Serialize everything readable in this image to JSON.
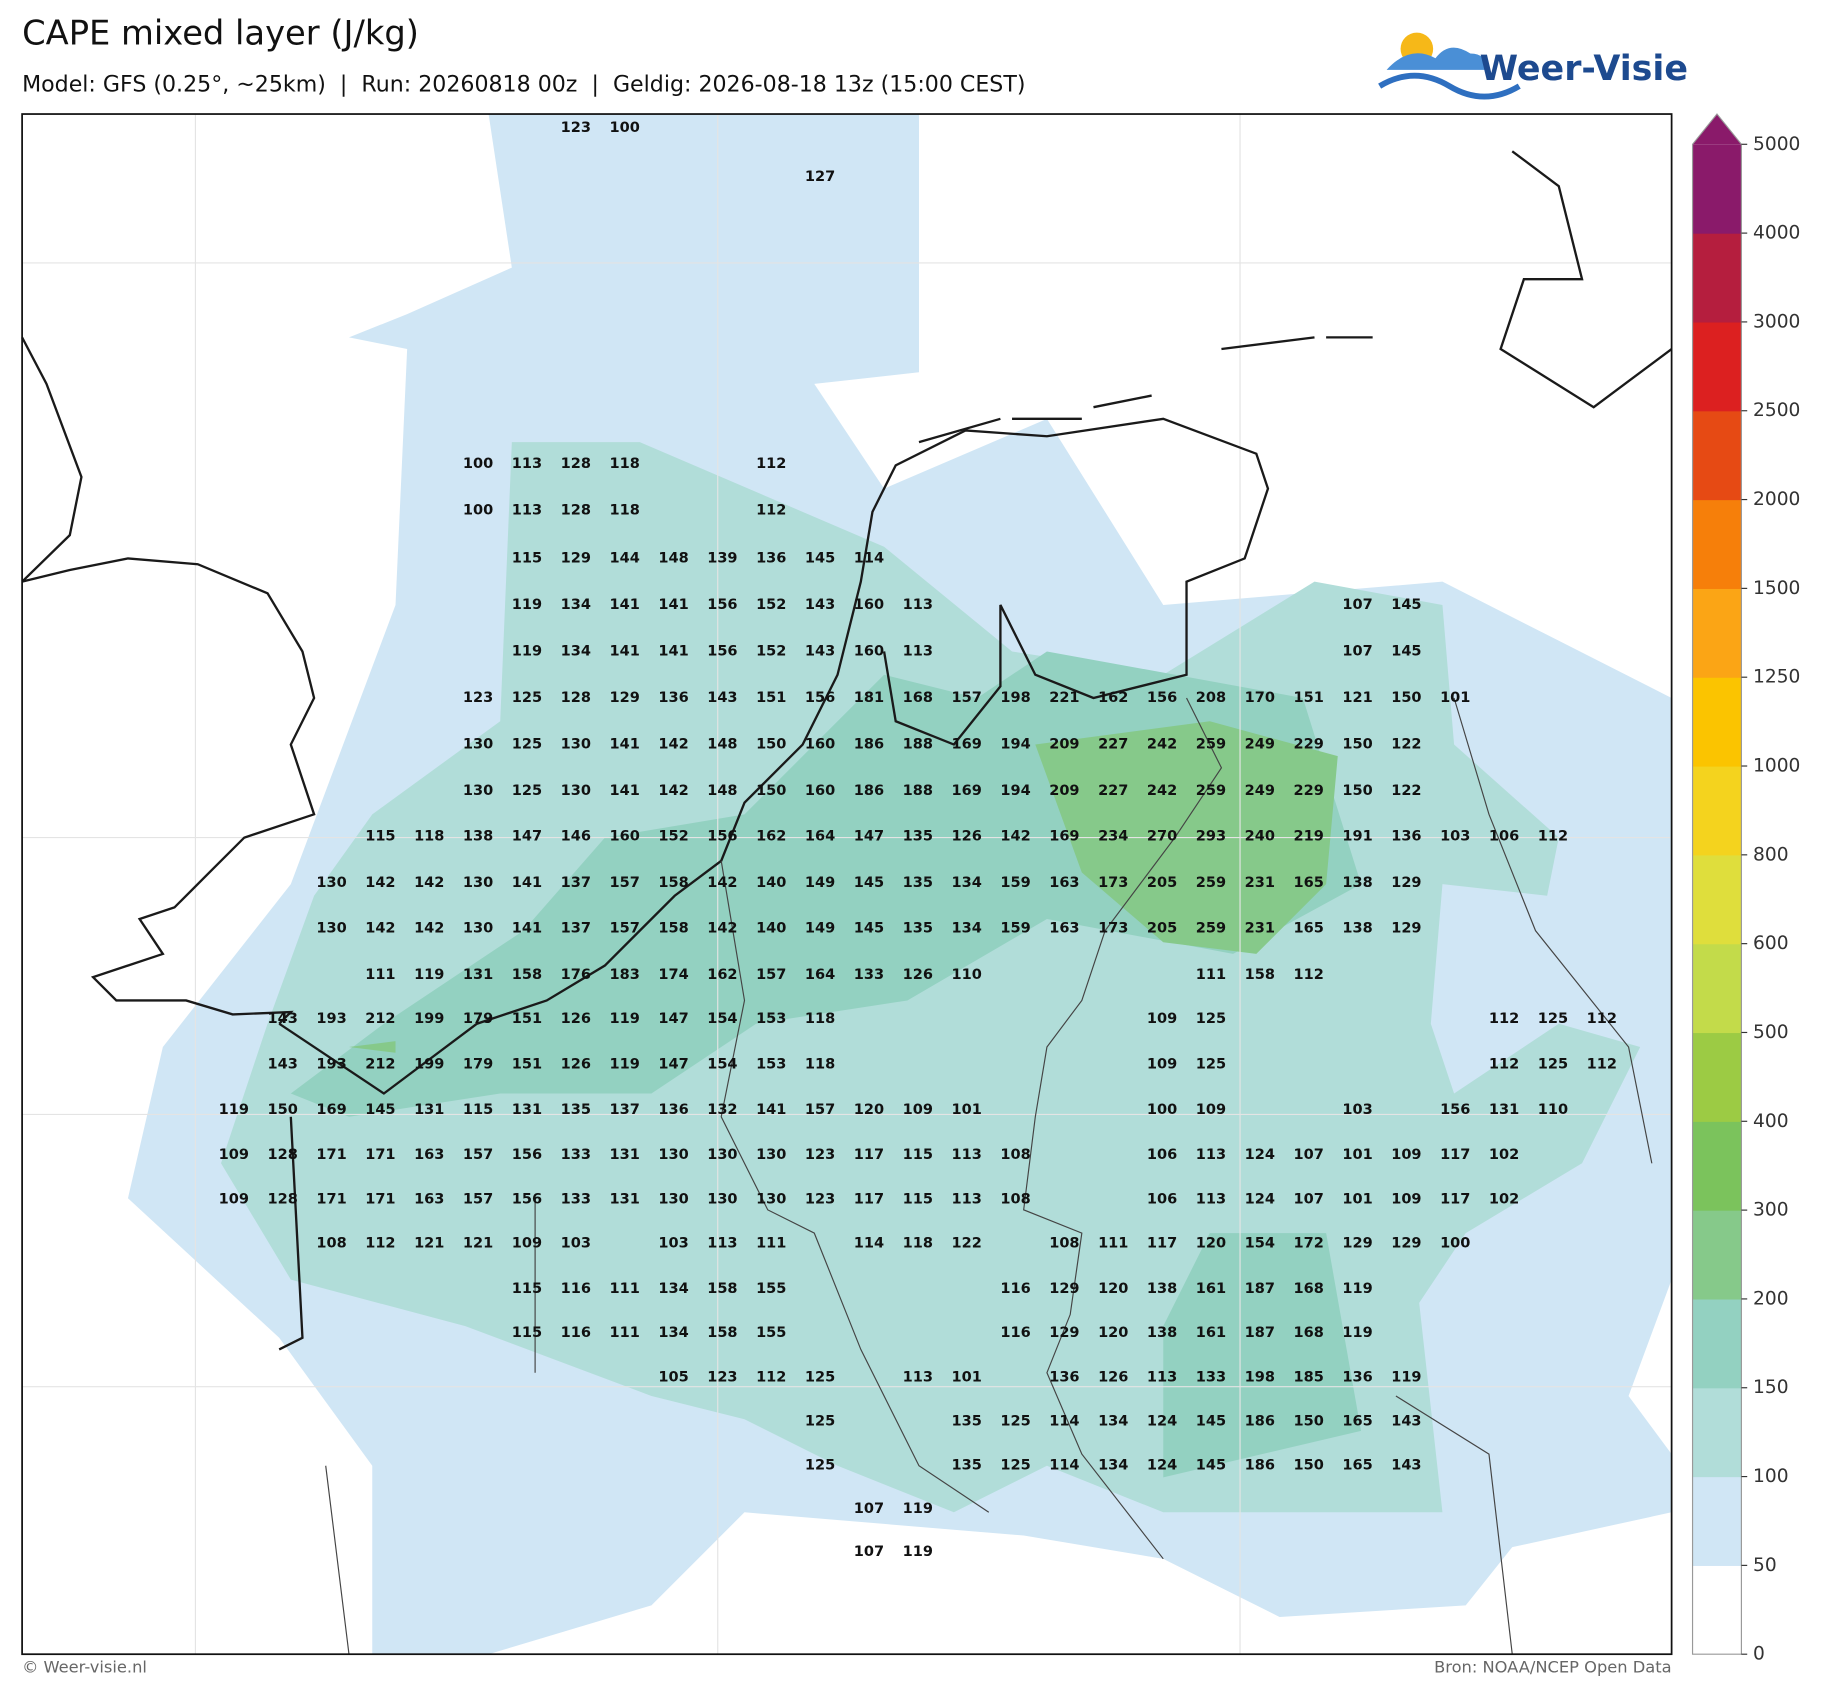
{
  "header": {
    "title": "CAPE mixed layer (J/kg)",
    "subtitle": "Model: GFS (0.25°, ~25km)  |  Run: 20260818 00z  |  Geldig: 2026-08-18 13z (15:00 CEST)",
    "logo": "Weer-Visie"
  },
  "colorbar": {
    "ticks": [
      0,
      50,
      100,
      150,
      200,
      300,
      400,
      500,
      600,
      800,
      1000,
      1250,
      1500,
      2000,
      2500,
      3000,
      4000,
      5000
    ],
    "colors": [
      "#ffffff",
      "#d0e6f5",
      "#b1ddd9",
      "#93d1c1",
      "#86c98a",
      "#7bc35c",
      "#9ccb44",
      "#c3db4a",
      "#dfde3c",
      "#f4d31e",
      "#fbc400",
      "#fba515",
      "#f67f0a",
      "#e64a14",
      "#dc2020",
      "#b51e3e",
      "#8a1a6a"
    ]
  },
  "grid": {
    "rows": [
      [
        null,
        null,
        null,
        null,
        null,
        null,
        null,
        123,
        100,
        null,
        null,
        null,
        null,
        null,
        null,
        null,
        null,
        null,
        null,
        null,
        null,
        null,
        null,
        null,
        null,
        null,
        null,
        null,
        null
      ],
      [
        null,
        null,
        null,
        null,
        null,
        null,
        null,
        null,
        null,
        null,
        null,
        null,
        127,
        null,
        null,
        null,
        null,
        null,
        null,
        null,
        null,
        null,
        null,
        null,
        null,
        null,
        null,
        null,
        null
      ],
      [
        null,
        null,
        null,
        null,
        null,
        100,
        113,
        128,
        118,
        null,
        null,
        112,
        null,
        null,
        null,
        null,
        null,
        null,
        null,
        null,
        null,
        null,
        null,
        null,
        null,
        null,
        null,
        null,
        null
      ],
      [
        null,
        null,
        null,
        null,
        null,
        100,
        113,
        128,
        118,
        null,
        null,
        112,
        null,
        null,
        null,
        null,
        null,
        null,
        null,
        null,
        null,
        null,
        null,
        null,
        null,
        null,
        null,
        null,
        null
      ],
      [
        null,
        null,
        null,
        null,
        null,
        null,
        115,
        129,
        144,
        148,
        139,
        136,
        145,
        114,
        null,
        null,
        null,
        null,
        null,
        null,
        null,
        null,
        null,
        null,
        null,
        null,
        null,
        null,
        null
      ],
      [
        null,
        null,
        null,
        null,
        null,
        null,
        119,
        134,
        141,
        141,
        156,
        152,
        143,
        160,
        113,
        null,
        null,
        null,
        null,
        null,
        null,
        null,
        null,
        107,
        145,
        null,
        null,
        null,
        null
      ],
      [
        null,
        null,
        null,
        null,
        null,
        null,
        119,
        134,
        141,
        141,
        156,
        152,
        143,
        160,
        113,
        null,
        null,
        null,
        null,
        null,
        null,
        null,
        null,
        107,
        145,
        null,
        null,
        null,
        null
      ],
      [
        null,
        null,
        null,
        null,
        null,
        123,
        125,
        128,
        129,
        136,
        143,
        151,
        156,
        181,
        168,
        157,
        198,
        221,
        162,
        156,
        208,
        170,
        151,
        121,
        150,
        101,
        null,
        null,
        null
      ],
      [
        null,
        null,
        null,
        null,
        null,
        130,
        125,
        130,
        141,
        142,
        148,
        150,
        160,
        186,
        188,
        169,
        194,
        209,
        227,
        242,
        259,
        249,
        229,
        150,
        122,
        null,
        null,
        null,
        null
      ],
      [
        null,
        null,
        null,
        null,
        null,
        130,
        125,
        130,
        141,
        142,
        148,
        150,
        160,
        186,
        188,
        169,
        194,
        209,
        227,
        242,
        259,
        249,
        229,
        150,
        122,
        null,
        null,
        null,
        null
      ],
      [
        null,
        null,
        null,
        115,
        118,
        138,
        147,
        146,
        160,
        152,
        156,
        162,
        164,
        147,
        135,
        126,
        142,
        169,
        234,
        270,
        293,
        240,
        219,
        191,
        136,
        103,
        106,
        112,
        null
      ],
      [
        null,
        null,
        130,
        142,
        142,
        130,
        141,
        137,
        157,
        158,
        142,
        140,
        149,
        145,
        135,
        134,
        159,
        163,
        173,
        205,
        259,
        231,
        165,
        138,
        129,
        null,
        null,
        null,
        null
      ],
      [
        null,
        null,
        130,
        142,
        142,
        130,
        141,
        137,
        157,
        158,
        142,
        140,
        149,
        145,
        135,
        134,
        159,
        163,
        173,
        205,
        259,
        231,
        165,
        138,
        129,
        null,
        null,
        null,
        null
      ],
      [
        null,
        null,
        null,
        111,
        119,
        131,
        158,
        176,
        183,
        174,
        162,
        157,
        164,
        133,
        126,
        110,
        null,
        null,
        null,
        null,
        111,
        158,
        112,
        null,
        null,
        null,
        null,
        null,
        null
      ],
      [
        null,
        143,
        193,
        212,
        199,
        179,
        151,
        126,
        119,
        147,
        154,
        153,
        118,
        null,
        null,
        null,
        null,
        null,
        null,
        109,
        125,
        null,
        null,
        null,
        null,
        null,
        112,
        125,
        112
      ],
      [
        null,
        143,
        193,
        212,
        199,
        179,
        151,
        126,
        119,
        147,
        154,
        153,
        118,
        null,
        null,
        null,
        null,
        null,
        null,
        109,
        125,
        null,
        null,
        null,
        null,
        null,
        112,
        125,
        112
      ],
      [
        119,
        150,
        169,
        145,
        131,
        115,
        131,
        135,
        137,
        136,
        132,
        141,
        157,
        120,
        109,
        101,
        null,
        null,
        null,
        100,
        109,
        null,
        null,
        103,
        null,
        156,
        131,
        110,
        null
      ],
      [
        109,
        128,
        171,
        171,
        163,
        157,
        156,
        133,
        131,
        130,
        130,
        130,
        123,
        117,
        115,
        113,
        108,
        null,
        null,
        106,
        113,
        124,
        107,
        101,
        109,
        117,
        102,
        null,
        null
      ],
      [
        109,
        128,
        171,
        171,
        163,
        157,
        156,
        133,
        131,
        130,
        130,
        130,
        123,
        117,
        115,
        113,
        108,
        null,
        null,
        106,
        113,
        124,
        107,
        101,
        109,
        117,
        102,
        null,
        null
      ],
      [
        null,
        null,
        108,
        112,
        121,
        121,
        109,
        103,
        null,
        103,
        113,
        111,
        null,
        114,
        118,
        122,
        null,
        108,
        111,
        117,
        120,
        154,
        172,
        129,
        129,
        100,
        null,
        null,
        null
      ],
      [
        null,
        null,
        null,
        null,
        null,
        null,
        115,
        116,
        111,
        134,
        158,
        155,
        null,
        null,
        null,
        null,
        116,
        129,
        120,
        138,
        161,
        187,
        168,
        119,
        null,
        null,
        null,
        null,
        null
      ],
      [
        null,
        null,
        null,
        null,
        null,
        null,
        115,
        116,
        111,
        134,
        158,
        155,
        null,
        null,
        null,
        null,
        116,
        129,
        120,
        138,
        161,
        187,
        168,
        119,
        null,
        null,
        null,
        null,
        null
      ],
      [
        null,
        null,
        null,
        null,
        null,
        null,
        null,
        null,
        null,
        105,
        123,
        112,
        125,
        null,
        113,
        101,
        null,
        136,
        126,
        113,
        133,
        198,
        185,
        136,
        119,
        null,
        null,
        null,
        null
      ],
      [
        null,
        null,
        null,
        null,
        null,
        null,
        null,
        null,
        null,
        null,
        null,
        null,
        125,
        null,
        null,
        135,
        125,
        114,
        134,
        124,
        145,
        186,
        150,
        165,
        143,
        null,
        null,
        null,
        null
      ],
      [
        null,
        null,
        null,
        null,
        null,
        null,
        null,
        null,
        null,
        null,
        null,
        null,
        125,
        null,
        null,
        135,
        125,
        114,
        134,
        124,
        145,
        186,
        150,
        165,
        143,
        null,
        null,
        null,
        null
      ],
      [
        null,
        null,
        null,
        null,
        null,
        null,
        null,
        null,
        null,
        null,
        null,
        null,
        null,
        107,
        119,
        null,
        null,
        null,
        null,
        null,
        null,
        null,
        null,
        null,
        null,
        null,
        null,
        null,
        null
      ],
      [
        null,
        null,
        null,
        null,
        null,
        null,
        null,
        null,
        null,
        null,
        null,
        null,
        null,
        107,
        119,
        null,
        null,
        null,
        null,
        null,
        null,
        null,
        null,
        null,
        null,
        null,
        null,
        null,
        null
      ]
    ]
  },
  "footer": {
    "left": "© Weer-visie.nl",
    "right": "Bron: NOAA/NCEP Open Data"
  }
}
